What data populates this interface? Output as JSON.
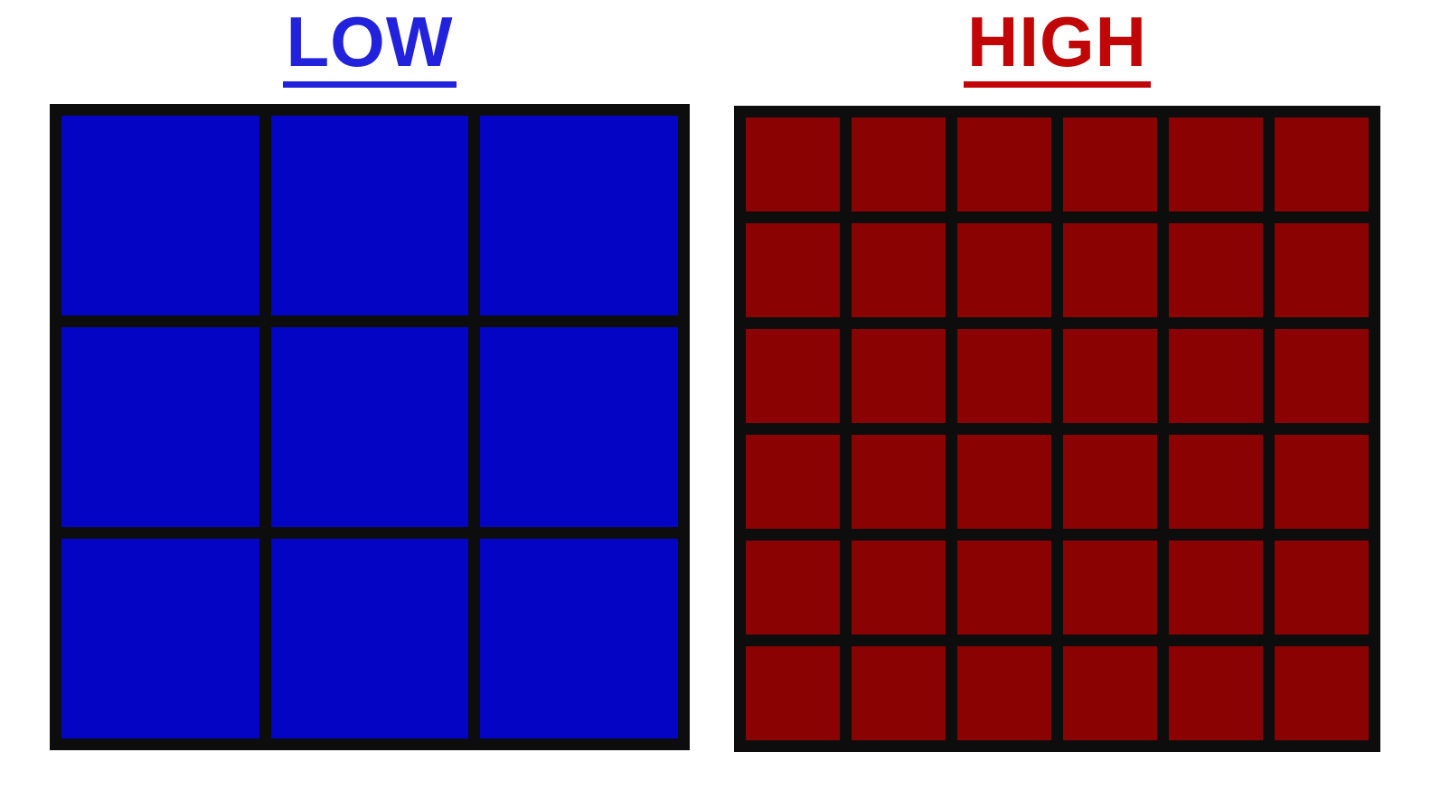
{
  "background_color": "#FFFFFF",
  "panels": [
    {
      "label": "LOW",
      "title_color": "#2222DC",
      "grid": {
        "rows": 3,
        "cols": 3,
        "cell_count": 9,
        "cell_color": "#0404C4",
        "line_color": "#0D0D0D"
      }
    },
    {
      "label": "HIGH",
      "title_color": "#C00606",
      "grid": {
        "rows": 6,
        "cols": 6,
        "cell_count": 36,
        "cell_color": "#8B0202",
        "line_color": "#0D0D0D"
      }
    }
  ]
}
